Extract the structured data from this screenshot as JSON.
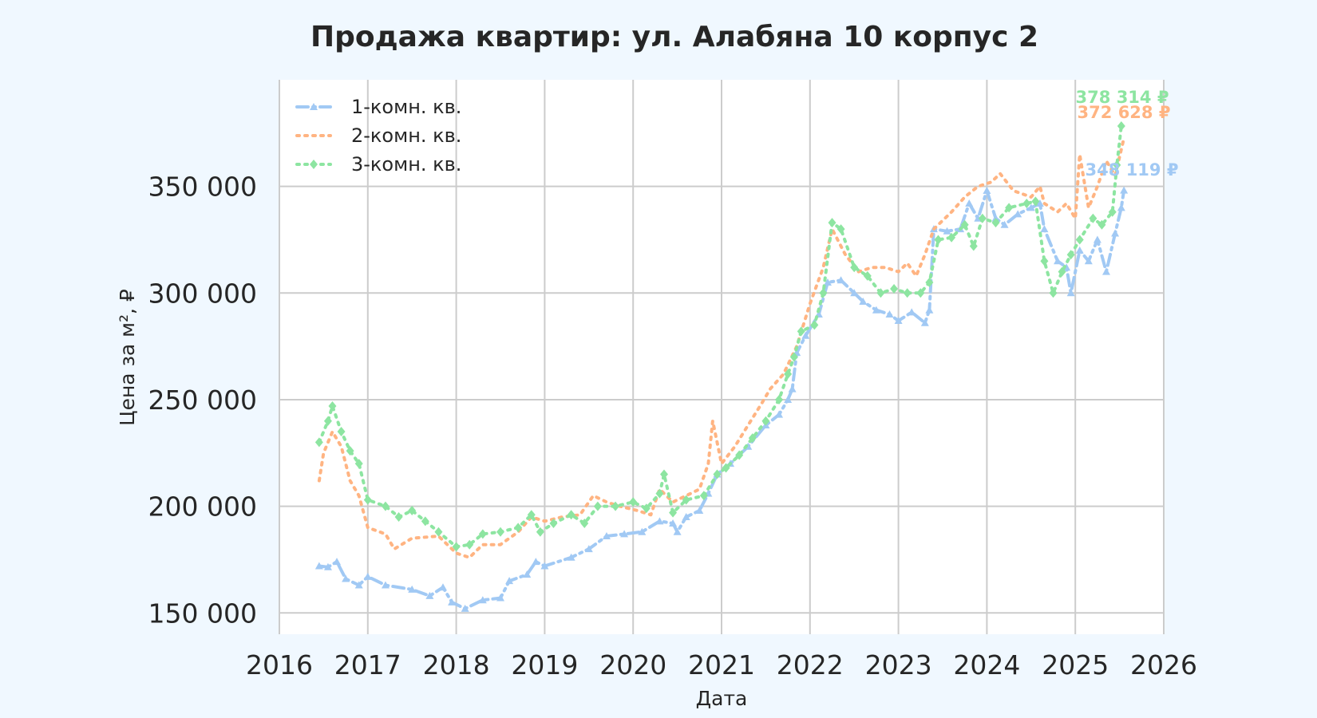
{
  "chart_data": {
    "type": "line",
    "title": "Продажа квартир: ул. Алабяна 10 корпус 2",
    "xlabel": "Дата",
    "ylabel": "Цена за м², ₽",
    "xlim": [
      2016.0,
      2026.0
    ],
    "ylim": [
      140000,
      400000
    ],
    "x_ticks": [
      2016,
      2017,
      2018,
      2019,
      2020,
      2021,
      2022,
      2023,
      2024,
      2025,
      2026
    ],
    "x_tick_labels": [
      "2016",
      "2017",
      "2018",
      "2019",
      "2020",
      "2021",
      "2022",
      "2023",
      "2024",
      "2025",
      "2026"
    ],
    "y_ticks": [
      150000,
      200000,
      250000,
      300000,
      350000
    ],
    "y_tick_labels": [
      "150 000",
      "200 000",
      "250 000",
      "300 000",
      "350 000"
    ],
    "grid": true,
    "legend_position": "top-left",
    "series": [
      {
        "name": "1-комн. кв.",
        "color": "#a1c9f4",
        "style": "dashdot",
        "marker": "triangle",
        "end_label": "348 119 ₽",
        "points": [
          [
            2016.45,
            172000
          ],
          [
            2016.55,
            171500
          ],
          [
            2016.65,
            174000
          ],
          [
            2016.75,
            166000
          ],
          [
            2016.9,
            163000
          ],
          [
            2017.0,
            167000
          ],
          [
            2017.2,
            163000
          ],
          [
            2017.5,
            161000
          ],
          [
            2017.7,
            158000
          ],
          [
            2017.85,
            162000
          ],
          [
            2017.95,
            155000
          ],
          [
            2018.1,
            152000
          ],
          [
            2018.3,
            156000
          ],
          [
            2018.5,
            157000
          ],
          [
            2018.6,
            165000
          ],
          [
            2018.8,
            168000
          ],
          [
            2018.9,
            174000
          ],
          [
            2019.0,
            172000
          ],
          [
            2019.3,
            176000
          ],
          [
            2019.5,
            180000
          ],
          [
            2019.7,
            186000
          ],
          [
            2019.9,
            187000
          ],
          [
            2020.1,
            188000
          ],
          [
            2020.3,
            193000
          ],
          [
            2020.45,
            192000
          ],
          [
            2020.5,
            188000
          ],
          [
            2020.6,
            195000
          ],
          [
            2020.75,
            198000
          ],
          [
            2020.85,
            206000
          ],
          [
            2020.95,
            215000
          ],
          [
            2021.1,
            220000
          ],
          [
            2021.3,
            228000
          ],
          [
            2021.5,
            238000
          ],
          [
            2021.65,
            243000
          ],
          [
            2021.75,
            250000
          ],
          [
            2021.8,
            255000
          ],
          [
            2021.85,
            272000
          ],
          [
            2021.95,
            280000
          ],
          [
            2022.1,
            290000
          ],
          [
            2022.2,
            305000
          ],
          [
            2022.35,
            306000
          ],
          [
            2022.5,
            300000
          ],
          [
            2022.6,
            296000
          ],
          [
            2022.75,
            292000
          ],
          [
            2022.9,
            290000
          ],
          [
            2023.0,
            287000
          ],
          [
            2023.15,
            291000
          ],
          [
            2023.3,
            286000
          ],
          [
            2023.35,
            292000
          ],
          [
            2023.4,
            330000
          ],
          [
            2023.55,
            329000
          ],
          [
            2023.7,
            330000
          ],
          [
            2023.8,
            342000
          ],
          [
            2023.9,
            335000
          ],
          [
            2024.0,
            348000
          ],
          [
            2024.1,
            335000
          ],
          [
            2024.2,
            332000
          ],
          [
            2024.35,
            337000
          ],
          [
            2024.5,
            340000
          ],
          [
            2024.6,
            342000
          ],
          [
            2024.65,
            330000
          ],
          [
            2024.8,
            315000
          ],
          [
            2024.9,
            312000
          ],
          [
            2024.95,
            300000
          ],
          [
            2025.05,
            320000
          ],
          [
            2025.15,
            315000
          ],
          [
            2025.25,
            325000
          ],
          [
            2025.35,
            310000
          ],
          [
            2025.45,
            328000
          ],
          [
            2025.52,
            340000
          ],
          [
            2025.55,
            348119
          ]
        ]
      },
      {
        "name": "2-комн. кв.",
        "color": "#ffb482",
        "style": "dotted",
        "marker": "none",
        "end_label": "372 628 ₽",
        "points": [
          [
            2016.45,
            212000
          ],
          [
            2016.5,
            225000
          ],
          [
            2016.6,
            235000
          ],
          [
            2016.7,
            228000
          ],
          [
            2016.8,
            212000
          ],
          [
            2016.9,
            205000
          ],
          [
            2017.0,
            190000
          ],
          [
            2017.2,
            187000
          ],
          [
            2017.3,
            180000
          ],
          [
            2017.5,
            185000
          ],
          [
            2017.8,
            186000
          ],
          [
            2018.0,
            178000
          ],
          [
            2018.15,
            176000
          ],
          [
            2018.3,
            182000
          ],
          [
            2018.5,
            182000
          ],
          [
            2018.7,
            188000
          ],
          [
            2018.85,
            195000
          ],
          [
            2019.0,
            193000
          ],
          [
            2019.2,
            195000
          ],
          [
            2019.4,
            196000
          ],
          [
            2019.55,
            205000
          ],
          [
            2019.7,
            202000
          ],
          [
            2019.85,
            200000
          ],
          [
            2020.05,
            198000
          ],
          [
            2020.2,
            196000
          ],
          [
            2020.3,
            208000
          ],
          [
            2020.45,
            202000
          ],
          [
            2020.6,
            205000
          ],
          [
            2020.75,
            208000
          ],
          [
            2020.85,
            220000
          ],
          [
            2020.9,
            240000
          ],
          [
            2021.0,
            220000
          ],
          [
            2021.15,
            228000
          ],
          [
            2021.3,
            238000
          ],
          [
            2021.45,
            248000
          ],
          [
            2021.55,
            255000
          ],
          [
            2021.7,
            262000
          ],
          [
            2021.85,
            275000
          ],
          [
            2022.0,
            295000
          ],
          [
            2022.15,
            312000
          ],
          [
            2022.25,
            330000
          ],
          [
            2022.4,
            318000
          ],
          [
            2022.55,
            310000
          ],
          [
            2022.7,
            312000
          ],
          [
            2022.85,
            312000
          ],
          [
            2023.0,
            310000
          ],
          [
            2023.1,
            314000
          ],
          [
            2023.2,
            308000
          ],
          [
            2023.3,
            318000
          ],
          [
            2023.4,
            330000
          ],
          [
            2023.6,
            338000
          ],
          [
            2023.75,
            345000
          ],
          [
            2023.9,
            350000
          ],
          [
            2024.05,
            352000
          ],
          [
            2024.15,
            356000
          ],
          [
            2024.3,
            348000
          ],
          [
            2024.5,
            345000
          ],
          [
            2024.6,
            350000
          ],
          [
            2024.65,
            342000
          ],
          [
            2024.8,
            338000
          ],
          [
            2024.9,
            342000
          ],
          [
            2025.0,
            335000
          ],
          [
            2025.05,
            365000
          ],
          [
            2025.15,
            340000
          ],
          [
            2025.25,
            350000
          ],
          [
            2025.35,
            362000
          ],
          [
            2025.45,
            355000
          ],
          [
            2025.55,
            372628
          ]
        ]
      },
      {
        "name": "3-комн. кв.",
        "color": "#8de5a1",
        "style": "dotted",
        "marker": "diamond",
        "end_label": "378 314 ₽",
        "points": [
          [
            2016.45,
            230000
          ],
          [
            2016.55,
            240000
          ],
          [
            2016.6,
            247000
          ],
          [
            2016.7,
            235000
          ],
          [
            2016.8,
            226000
          ],
          [
            2016.9,
            220000
          ],
          [
            2017.0,
            203000
          ],
          [
            2017.2,
            200000
          ],
          [
            2017.35,
            195000
          ],
          [
            2017.5,
            198000
          ],
          [
            2017.65,
            193000
          ],
          [
            2017.8,
            188000
          ],
          [
            2018.0,
            181000
          ],
          [
            2018.15,
            182000
          ],
          [
            2018.3,
            187000
          ],
          [
            2018.5,
            188000
          ],
          [
            2018.7,
            190000
          ],
          [
            2018.85,
            196000
          ],
          [
            2018.95,
            188000
          ],
          [
            2019.1,
            192000
          ],
          [
            2019.3,
            196000
          ],
          [
            2019.45,
            192000
          ],
          [
            2019.6,
            200000
          ],
          [
            2019.8,
            200000
          ],
          [
            2020.0,
            202000
          ],
          [
            2020.15,
            199000
          ],
          [
            2020.3,
            206000
          ],
          [
            2020.35,
            215000
          ],
          [
            2020.45,
            197000
          ],
          [
            2020.6,
            203000
          ],
          [
            2020.8,
            205000
          ],
          [
            2020.95,
            215000
          ],
          [
            2021.05,
            218000
          ],
          [
            2021.2,
            224000
          ],
          [
            2021.35,
            232000
          ],
          [
            2021.5,
            240000
          ],
          [
            2021.65,
            250000
          ],
          [
            2021.75,
            262000
          ],
          [
            2021.82,
            270000
          ],
          [
            2021.9,
            282000
          ],
          [
            2022.05,
            285000
          ],
          [
            2022.15,
            300000
          ],
          [
            2022.25,
            333000
          ],
          [
            2022.35,
            330000
          ],
          [
            2022.5,
            312000
          ],
          [
            2022.65,
            308000
          ],
          [
            2022.8,
            300000
          ],
          [
            2022.95,
            302000
          ],
          [
            2023.1,
            300000
          ],
          [
            2023.25,
            300000
          ],
          [
            2023.35,
            305000
          ],
          [
            2023.45,
            325000
          ],
          [
            2023.6,
            326000
          ],
          [
            2023.75,
            332000
          ],
          [
            2023.85,
            322000
          ],
          [
            2023.95,
            335000
          ],
          [
            2024.1,
            333000
          ],
          [
            2024.25,
            340000
          ],
          [
            2024.45,
            342000
          ],
          [
            2024.55,
            343000
          ],
          [
            2024.65,
            315000
          ],
          [
            2024.75,
            300000
          ],
          [
            2024.85,
            310000
          ],
          [
            2024.95,
            318000
          ],
          [
            2025.05,
            325000
          ],
          [
            2025.2,
            335000
          ],
          [
            2025.3,
            332000
          ],
          [
            2025.42,
            338000
          ],
          [
            2025.47,
            360000
          ],
          [
            2025.52,
            378314
          ]
        ]
      }
    ]
  }
}
